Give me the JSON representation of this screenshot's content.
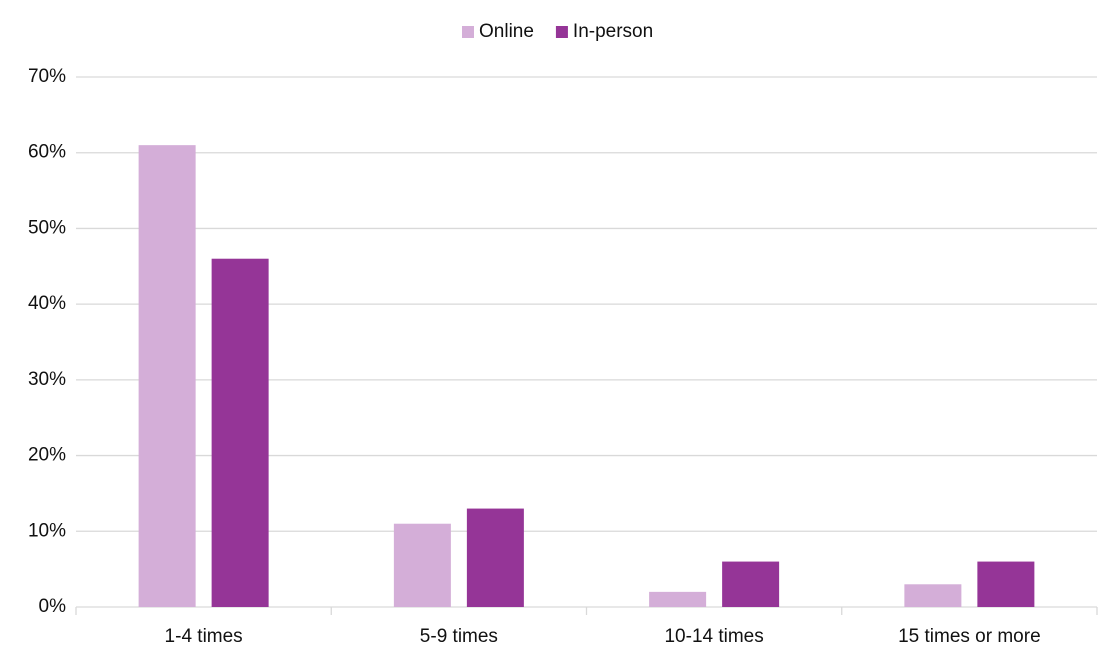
{
  "chart_data": {
    "type": "bar",
    "categories": [
      "1-4 times",
      "5-9 times",
      "10-14 times",
      "15 times or more"
    ],
    "series": [
      {
        "name": "Online",
        "color": "#d4aed8",
        "values": [
          61,
          11,
          2,
          3
        ]
      },
      {
        "name": "In-person",
        "color": "#953597",
        "values": [
          46,
          13,
          6,
          6
        ]
      }
    ],
    "ylim": [
      0,
      70
    ],
    "yticks": [
      {
        "value": 0,
        "label": "0%"
      },
      {
        "value": 10,
        "label": "10%"
      },
      {
        "value": 20,
        "label": "20%"
      },
      {
        "value": 30,
        "label": "30%"
      },
      {
        "value": 40,
        "label": "40%"
      },
      {
        "value": 50,
        "label": "50%"
      },
      {
        "value": 60,
        "label": "60%"
      },
      {
        "value": 70,
        "label": "70%"
      }
    ],
    "grid": true,
    "legend": "top"
  }
}
